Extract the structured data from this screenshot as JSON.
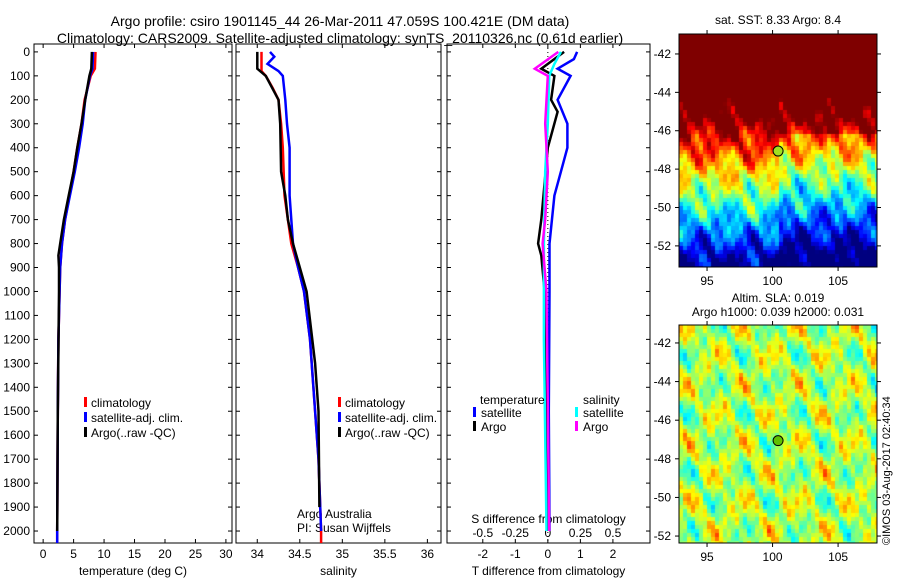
{
  "title": {
    "line1": "Argo profile: csiro 1901145_44 26-Mar-2011 47.059S 100.421E (DM data)",
    "line2": "Climatology: CARS2009. Satellite-adjusted climatology: synTS_20110326.nc (0.61d earlier)"
  },
  "colors": {
    "climatology": "#ff0000",
    "satellite": "#0000ff",
    "argo": "#000000",
    "sal_satellite": "#00ffff",
    "sal_argo": "#ff00ff"
  },
  "depth_axis": {
    "ticks": [
      0,
      100,
      200,
      300,
      400,
      500,
      600,
      700,
      800,
      900,
      1000,
      1100,
      1200,
      1300,
      1400,
      1500,
      1600,
      1700,
      1800,
      1900,
      2000
    ],
    "range": [
      -33,
      2050
    ]
  },
  "chart_data": [
    {
      "type": "line",
      "id": "temperature",
      "xlabel": "temperature (deg C)",
      "xlim": [
        -1.5,
        31
      ],
      "xticks": [
        0,
        5,
        10,
        15,
        20,
        25,
        30
      ],
      "legend": [
        "climatology",
        "satellite-adj. clim.",
        "Argo(..raw -QC)"
      ],
      "series": [
        {
          "name": "climatology",
          "color": "#ff0000",
          "depth": [
            0,
            70,
            100,
            200,
            300,
            400,
            500,
            600,
            700,
            800,
            900,
            1000,
            1200,
            1500,
            2000,
            2050
          ],
          "values": [
            8.6,
            8.5,
            7.8,
            6.8,
            6.3,
            5.6,
            5.0,
            4.3,
            3.6,
            3.1,
            2.8,
            2.7,
            2.5,
            2.4,
            2.3,
            2.3
          ]
        },
        {
          "name": "satellite-adj. clim.",
          "color": "#0000ff",
          "depth": [
            0,
            70,
            100,
            200,
            300,
            400,
            500,
            600,
            700,
            800,
            900,
            1000,
            1200,
            1500,
            2000,
            2050
          ],
          "values": [
            8.2,
            8.1,
            7.7,
            6.9,
            6.5,
            5.9,
            5.2,
            4.4,
            3.6,
            3.1,
            2.8,
            2.7,
            2.5,
            2.4,
            2.3,
            2.3
          ]
        },
        {
          "name": "Argo(..raw -QC)",
          "color": "#000000",
          "depth": [
            0,
            70,
            100,
            200,
            300,
            400,
            500,
            600,
            700,
            800,
            850,
            900,
            1000,
            1500,
            2000
          ],
          "values": [
            8.0,
            7.9,
            7.6,
            6.9,
            6.3,
            5.6,
            5.0,
            4.2,
            3.4,
            2.8,
            2.5,
            2.6,
            2.6,
            2.4,
            2.3
          ]
        }
      ],
      "annotations": []
    },
    {
      "type": "line",
      "id": "salinity",
      "xlabel": "salinity",
      "xlim": [
        33.75,
        36.16
      ],
      "xticks": [
        34,
        34.5,
        35,
        35.5,
        36
      ],
      "legend": [
        "climatology",
        "satellite-adj. clim.",
        "Argo(..raw -QC)"
      ],
      "series": [
        {
          "name": "climatology",
          "color": "#ff0000",
          "depth": [
            0,
            80,
            100,
            150,
            200,
            300,
            400,
            600,
            800,
            900,
            1000,
            1200,
            1500,
            1700,
            2000,
            2050
          ],
          "values": [
            34.05,
            34.05,
            34.1,
            34.18,
            34.25,
            34.28,
            34.3,
            34.32,
            34.4,
            34.48,
            34.55,
            34.62,
            34.68,
            34.72,
            34.75,
            34.75
          ]
        },
        {
          "name": "satellite-adj. clim.",
          "color": "#0000ff",
          "depth": [
            0,
            20,
            50,
            80,
            100,
            200,
            300,
            400,
            600,
            800,
            900,
            1000,
            1200,
            1500,
            1700,
            2000
          ],
          "values": [
            34.15,
            34.2,
            34.12,
            34.25,
            34.3,
            34.33,
            34.35,
            34.38,
            34.38,
            34.42,
            34.48,
            34.55,
            34.62,
            34.68,
            34.72,
            34.75
          ]
        },
        {
          "name": "Argo(..raw -QC)",
          "color": "#000000",
          "depth": [
            0,
            70,
            100,
            200,
            300,
            500,
            600,
            700,
            800,
            900,
            1000,
            1300,
            1500,
            1900
          ],
          "values": [
            34.0,
            34.0,
            34.1,
            34.25,
            34.27,
            34.28,
            34.33,
            34.36,
            34.42,
            34.5,
            34.58,
            34.68,
            34.72,
            34.73
          ]
        }
      ],
      "annotations": [
        "Argo Australia",
        "PI: Susan Wijffels"
      ]
    },
    {
      "type": "line",
      "id": "differences",
      "xlabel": "T difference from climatology",
      "xlim": [
        -3.1,
        3.14
      ],
      "xticks": [
        -2,
        -1,
        0,
        1,
        2
      ],
      "x2label": "S difference from climatology",
      "x2ticks": [
        -0.5,
        -0.25,
        0,
        0.25,
        0.5
      ],
      "x2scale": 0.25,
      "legend_titles": [
        "temperature",
        "salinity"
      ],
      "legend": [
        "satellite",
        "Argo",
        "satellite",
        "Argo"
      ],
      "series": [
        {
          "name": "temperature satellite",
          "color": "#0000ff",
          "unit": "T",
          "depth": [
            0,
            30,
            70,
            100,
            200,
            300,
            400,
            500,
            600,
            800,
            1000,
            1500,
            2000
          ],
          "values": [
            0.9,
            0.8,
            0.3,
            0.7,
            0.3,
            0.6,
            0.6,
            0.4,
            0.2,
            0.05,
            0.05,
            0.03,
            0.05
          ]
        },
        {
          "name": "temperature Argo",
          "color": "#000000",
          "unit": "T",
          "depth": [
            0,
            70,
            100,
            200,
            250,
            400,
            700,
            800,
            850,
            1000,
            2000
          ],
          "values": [
            0.5,
            -0.2,
            0.2,
            0.1,
            0.3,
            0.0,
            -0.2,
            -0.3,
            -0.2,
            -0.1,
            0.0
          ]
        },
        {
          "name": "salinity satellite",
          "color": "#00ffff",
          "unit": "S",
          "depth": [
            0,
            50,
            100,
            300,
            500,
            800,
            1200,
            1600,
            2000
          ],
          "values": [
            0.1,
            0.05,
            0.01,
            0.0,
            -0.02,
            -0.03,
            -0.03,
            -0.02,
            -0.01
          ]
        },
        {
          "name": "salinity Argo",
          "color": "#ff00ff",
          "unit": "S",
          "depth": [
            0,
            70,
            100,
            300,
            500,
            700,
            800,
            1000,
            2000
          ],
          "values": [
            0.08,
            -0.1,
            0.0,
            -0.02,
            0.0,
            -0.02,
            -0.04,
            -0.01,
            0.01
          ]
        }
      ]
    },
    {
      "type": "heatmap",
      "id": "sst-map",
      "title": "sat. SST: 8.33 Argo: 8.4",
      "xlim": [
        92.86,
        107.97
      ],
      "ylim": [
        -53.1,
        -40.96
      ],
      "xticks": [
        95,
        100,
        105
      ],
      "yticks": [
        -42,
        -44,
        -46,
        -48,
        -50,
        -52
      ],
      "marker": {
        "lon": 100.421,
        "lat": -47.059,
        "color": "#a0e020"
      }
    },
    {
      "type": "heatmap",
      "id": "sla-map",
      "title": "Altim. SLA: 0.019",
      "subtitle": "Argo h1000: 0.039 h2000: 0.031",
      "xlim": [
        92.86,
        107.97
      ],
      "ylim": [
        -52.36,
        -41.07
      ],
      "xticks": [
        95,
        100,
        105
      ],
      "yticks": [
        -42,
        -44,
        -46,
        -48,
        -50,
        -52
      ],
      "marker": {
        "lon": 100.421,
        "lat": -47.059,
        "color": "#60c000"
      }
    }
  ],
  "footer": {
    "stamp": "©IMOS 03-Aug-2017 02:40:34"
  }
}
